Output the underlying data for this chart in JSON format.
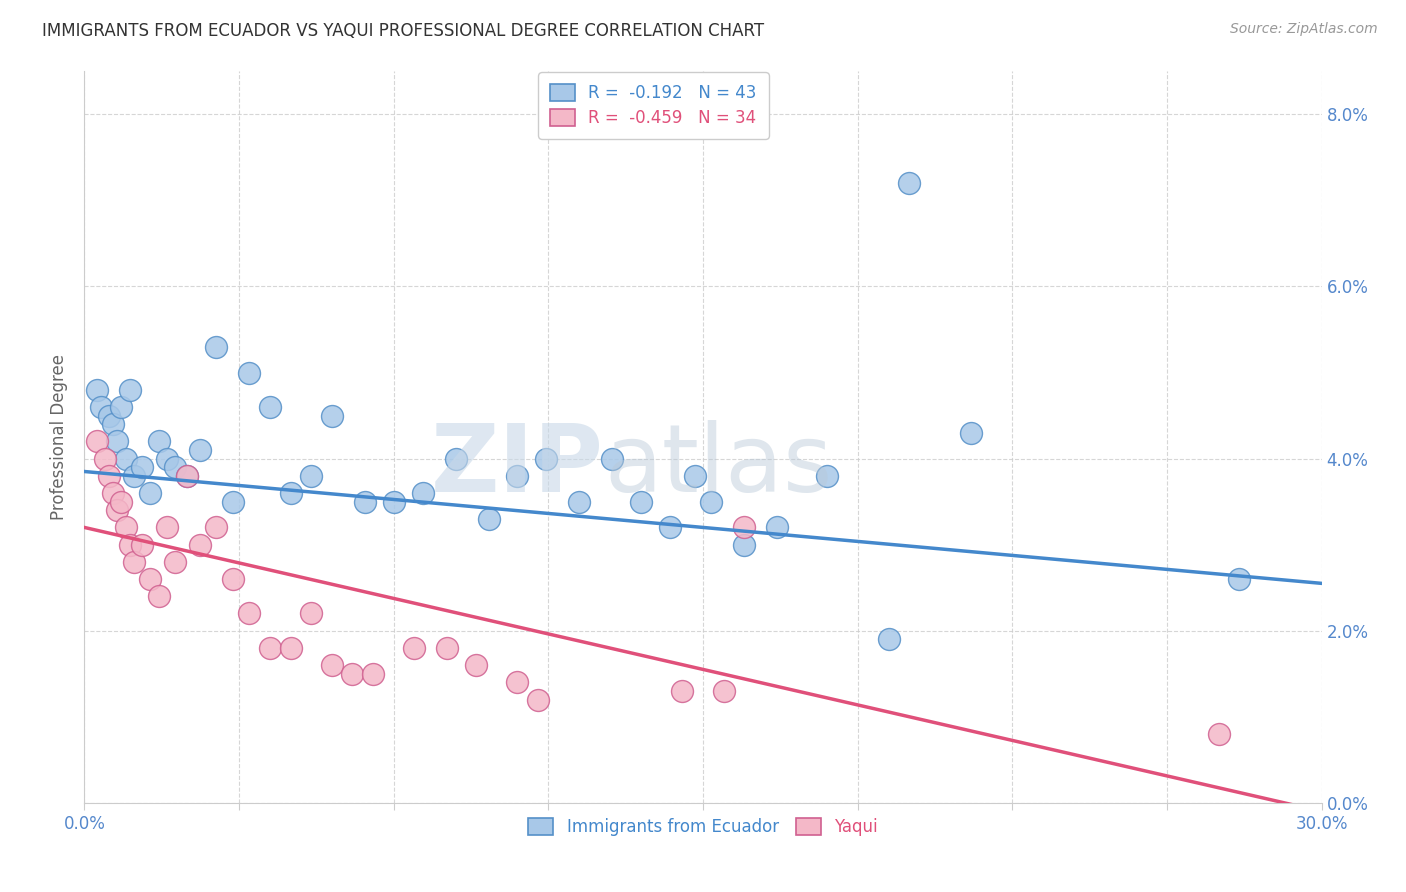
{
  "title": "IMMIGRANTS FROM ECUADOR VS YAQUI PROFESSIONAL DEGREE CORRELATION CHART",
  "source": "Source: ZipAtlas.com",
  "ylabel": "Professional Degree",
  "y_ticks": [
    0.0,
    2.0,
    4.0,
    6.0,
    8.0
  ],
  "x_ticks": [
    0.0,
    3.75,
    7.5,
    11.25,
    15.0,
    18.75,
    22.5,
    26.25,
    30.0
  ],
  "x_tick_labels_show": [
    true,
    false,
    false,
    false,
    false,
    false,
    false,
    false,
    true
  ],
  "x_tick_label_values": [
    "0.0%",
    "",
    "",
    "",
    "",
    "",
    "",
    "",
    "30.0%"
  ],
  "legend_blue_r": "-0.192",
  "legend_blue_n": "43",
  "legend_pink_r": "-0.459",
  "legend_pink_n": "34",
  "watermark_zip": "ZIP",
  "watermark_atlas": "atlas",
  "blue_color": "#a8c8e8",
  "pink_color": "#f4b8c8",
  "blue_edge_color": "#5590c8",
  "pink_edge_color": "#d06090",
  "blue_line_color": "#4488cc",
  "pink_line_color": "#e0507a",
  "background_color": "#ffffff",
  "grid_color": "#cccccc",
  "title_color": "#333333",
  "axis_tick_color": "#5588cc",
  "blue_scatter_x": [
    0.3,
    0.4,
    0.6,
    0.7,
    0.8,
    0.9,
    1.0,
    1.1,
    1.2,
    1.4,
    1.6,
    1.8,
    2.0,
    2.2,
    2.5,
    2.8,
    3.2,
    3.6,
    4.0,
    4.5,
    5.0,
    5.5,
    6.0,
    6.8,
    7.5,
    8.2,
    9.0,
    9.8,
    10.5,
    11.2,
    12.0,
    12.8,
    13.5,
    14.2,
    14.8,
    15.2,
    16.0,
    16.8,
    18.0,
    19.5,
    20.0,
    21.5,
    28.0
  ],
  "blue_scatter_y": [
    4.8,
    4.6,
    4.5,
    4.4,
    4.2,
    4.6,
    4.0,
    4.8,
    3.8,
    3.9,
    3.6,
    4.2,
    4.0,
    3.9,
    3.8,
    4.1,
    5.3,
    3.5,
    5.0,
    4.6,
    3.6,
    3.8,
    4.5,
    3.5,
    3.5,
    3.6,
    4.0,
    3.3,
    3.8,
    4.0,
    3.5,
    4.0,
    3.5,
    3.2,
    3.8,
    3.5,
    3.0,
    3.2,
    3.8,
    1.9,
    7.2,
    4.3,
    2.6
  ],
  "pink_scatter_x": [
    0.3,
    0.5,
    0.6,
    0.7,
    0.8,
    0.9,
    1.0,
    1.1,
    1.2,
    1.4,
    1.6,
    1.8,
    2.0,
    2.2,
    2.5,
    2.8,
    3.2,
    3.6,
    4.0,
    4.5,
    5.0,
    5.5,
    6.0,
    6.5,
    7.0,
    8.0,
    8.8,
    9.5,
    10.5,
    11.0,
    14.5,
    15.5,
    16.0,
    27.5
  ],
  "pink_scatter_y": [
    4.2,
    4.0,
    3.8,
    3.6,
    3.4,
    3.5,
    3.2,
    3.0,
    2.8,
    3.0,
    2.6,
    2.4,
    3.2,
    2.8,
    3.8,
    3.0,
    3.2,
    2.6,
    2.2,
    1.8,
    1.8,
    2.2,
    1.6,
    1.5,
    1.5,
    1.8,
    1.8,
    1.6,
    1.4,
    1.2,
    1.3,
    1.3,
    3.2,
    0.8
  ],
  "blue_line_x0": 0.0,
  "blue_line_x1": 30.0,
  "blue_line_y0": 3.85,
  "blue_line_y1": 2.55,
  "pink_line_x0": 0.0,
  "pink_line_x1": 30.0,
  "pink_line_y0": 3.2,
  "pink_line_y1": -0.1,
  "xlim": [
    0.0,
    30.0
  ],
  "ylim": [
    0.0,
    8.5
  ]
}
